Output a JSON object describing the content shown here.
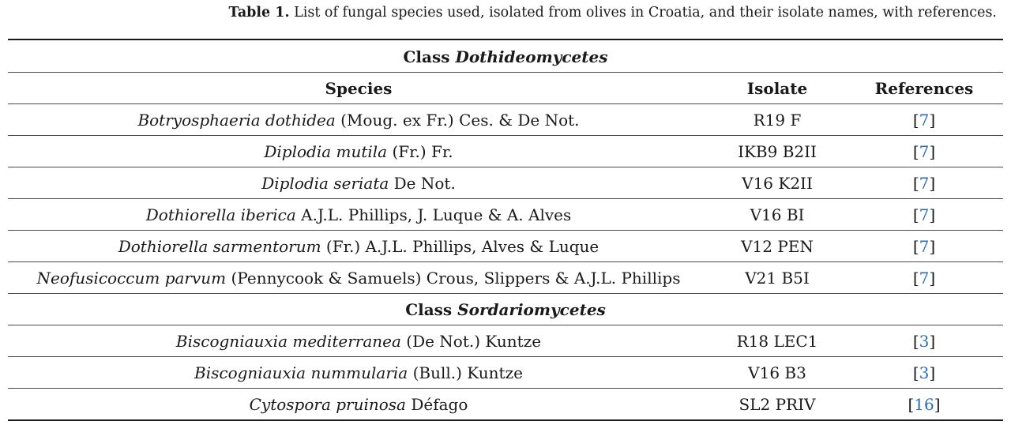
{
  "caption": {
    "label": "Table 1.",
    "text": "List of fungal species used, isolated from olives in Croatia, and their isolate names, with references."
  },
  "headers": {
    "species": "Species",
    "isolate": "Isolate",
    "references": "References"
  },
  "class_prefix": "Class",
  "groups": [
    {
      "class_name": "Dothideomycetes",
      "rows": [
        {
          "genus_species": "Botryosphaeria dothidea",
          "authority": "(Moug. ex Fr.) Ces. & De Not.",
          "isolate": "R19 F",
          "ref": "7"
        },
        {
          "genus_species": "Diplodia mutila",
          "authority": "(Fr.) Fr.",
          "isolate": "IKB9 B2II",
          "ref": "7"
        },
        {
          "genus_species": "Diplodia seriata",
          "authority": "De Not.",
          "isolate": "V16 K2II",
          "ref": "7"
        },
        {
          "genus_species": "Dothiorella iberica",
          "authority": "A.J.L. Phillips, J. Luque & A. Alves",
          "isolate": "V16 BI",
          "ref": "7"
        },
        {
          "genus_species": "Dothiorella sarmentorum",
          "authority": "(Fr.) A.J.L. Phillips, Alves & Luque",
          "isolate": "V12 PEN",
          "ref": "7"
        },
        {
          "genus_species": "Neofusicoccum parvum",
          "authority": "(Pennycook & Samuels) Crous, Slippers & A.J.L. Phillips",
          "isolate": "V21 B5I",
          "ref": "7"
        }
      ]
    },
    {
      "class_name": "Sordariomycetes",
      "rows": [
        {
          "genus_species": "Biscogniauxia mediterranea",
          "authority": "(De Not.) Kuntze",
          "isolate": "R18 LEC1",
          "ref": "3"
        },
        {
          "genus_species": "Biscogniauxia nummularia",
          "authority": "(Bull.) Kuntze",
          "isolate": "V16 B3",
          "ref": "3"
        },
        {
          "genus_species": "Cytospora pruinosa",
          "authority": "Défago",
          "isolate": "SL2 PRIV",
          "ref": "16"
        }
      ]
    }
  ],
  "colors": {
    "text": "#1a1a1a",
    "reference_link": "#2a6ebb",
    "rule": "#1a1a1a"
  }
}
